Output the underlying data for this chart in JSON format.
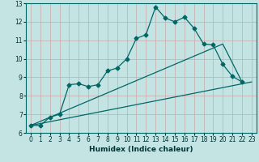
{
  "xlabel": "Humidex (Indice chaleur)",
  "bg_color": "#c4e4e4",
  "grid_color_v": "#d8c8c8",
  "grid_color_h": "#d8c8c8",
  "line_color": "#006666",
  "xlim": [
    -0.5,
    23.5
  ],
  "ylim": [
    6,
    13
  ],
  "xticks": [
    0,
    1,
    2,
    3,
    4,
    5,
    6,
    7,
    8,
    9,
    10,
    11,
    12,
    13,
    14,
    15,
    16,
    17,
    18,
    19,
    20,
    21,
    22,
    23
  ],
  "yticks": [
    6,
    7,
    8,
    9,
    10,
    11,
    12,
    13
  ],
  "line1_x": [
    0,
    1,
    2,
    3,
    4,
    5,
    6,
    7,
    8,
    9,
    10,
    11,
    12,
    13,
    14,
    15,
    16,
    17,
    18,
    19,
    20,
    21,
    22
  ],
  "line1_y": [
    6.4,
    6.4,
    6.85,
    7.0,
    8.6,
    8.65,
    8.5,
    8.6,
    9.35,
    9.5,
    10.0,
    11.1,
    11.3,
    12.8,
    12.2,
    12.0,
    12.25,
    11.65,
    10.8,
    10.75,
    9.7,
    9.05,
    8.75
  ],
  "line2_x": [
    0,
    23
  ],
  "line2_y": [
    6.4,
    8.75
  ],
  "line3_x": [
    0,
    20,
    22
  ],
  "line3_y": [
    6.4,
    10.8,
    8.75
  ],
  "marker_size": 2.5,
  "linewidth": 0.9,
  "tick_fontsize": 5.5,
  "xlabel_fontsize": 6.5
}
